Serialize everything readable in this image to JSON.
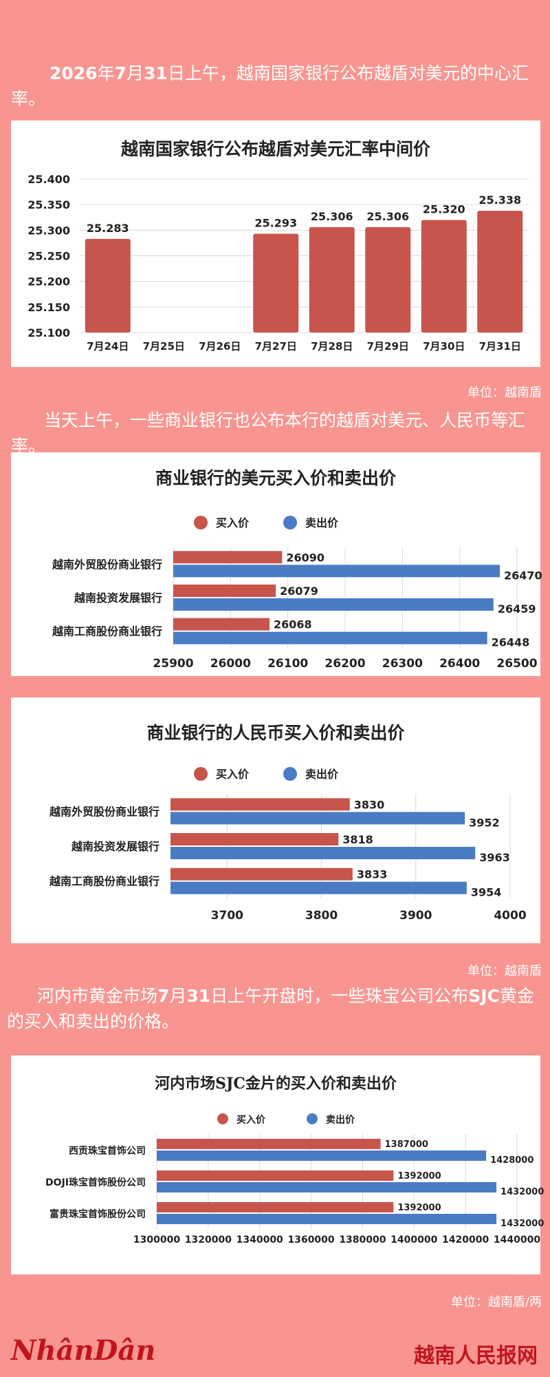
{
  "intro": {
    "date_bold": "2026",
    "t1": "年",
    "m": "7",
    "t2": "月",
    "d": "31",
    "t3": "日上午，越南国家银行公布越盾对美元的中心汇率。"
  },
  "para2": "当天上午，一些商业银行也公布本行的越盾对美元、人民币等汇率。",
  "para3": {
    "pre": "河内市黄金市场",
    "b1": "7",
    "mid1": "月",
    "b2": "31",
    "mid2": "日上午开盘时，一些珠宝公司公布",
    "b3": "SJC",
    "post": "黄金的买入和卖出的价格。"
  },
  "units": {
    "u1": "单位：越南盾",
    "u2": "单位：越南盾",
    "u3": "单位：越南盾/两"
  },
  "footer": {
    "logo": "NhânDân",
    "brand": "越南人民报网"
  },
  "colors": {
    "buy": "#c8554c",
    "sell": "#4a7cc4",
    "bg": "#f89590"
  },
  "chart_data": [
    {
      "type": "bar",
      "title": "越南国家银行公布越盾对美元汇率中间价",
      "categories": [
        "7月24日",
        "7月25日",
        "7月26日",
        "7月27日",
        "7月28日",
        "7月29日",
        "7月30日",
        "7月31日"
      ],
      "values": [
        25.283,
        null,
        null,
        25.293,
        25.306,
        25.306,
        25.32,
        25.338
      ],
      "value_labels": [
        "25.283",
        "",
        "",
        "25.293",
        "25.306",
        "25.306",
        "25.320",
        "25.338"
      ],
      "ylim": [
        25.1,
        25.4
      ],
      "yticks": [
        "25.100",
        "25.150",
        "25.200",
        "25.250",
        "25.300",
        "25.350",
        "25.400"
      ],
      "grid": true
    },
    {
      "type": "bar",
      "orientation": "horizontal",
      "title": "商业银行的美元买入价和卖出价",
      "legend": [
        "买入价",
        "卖出价"
      ],
      "categories": [
        "越南外贸股份商业银行",
        "越南投资发展银行",
        "越南工商股份商业银行"
      ],
      "series": [
        {
          "name": "买入价",
          "values": [
            26090,
            26079,
            26068
          ]
        },
        {
          "name": "卖出价",
          "values": [
            26470,
            26459,
            26448
          ]
        }
      ],
      "xlim": [
        25900,
        26500
      ],
      "xticks": [
        "25900",
        "26000",
        "26100",
        "26200",
        "26300",
        "26400",
        "26500"
      ]
    },
    {
      "type": "bar",
      "orientation": "horizontal",
      "title": "商业银行的人民币买入价和卖出价",
      "legend": [
        "买入价",
        "卖出价"
      ],
      "categories": [
        "越南外贸股份商业银行",
        "越南投资发展银行",
        "越南工商股份商业银行"
      ],
      "series": [
        {
          "name": "买入价",
          "values": [
            3830,
            3818,
            3833
          ]
        },
        {
          "name": "卖出价",
          "values": [
            3952,
            3963,
            3954
          ]
        }
      ],
      "xlim": [
        3640,
        4000
      ],
      "xticks": [
        "3700",
        "3800",
        "3900",
        "4000"
      ]
    },
    {
      "type": "bar",
      "orientation": "horizontal",
      "title": "河内市场SJC金片的买入价和卖出价",
      "legend": [
        "买入价",
        "卖出价"
      ],
      "categories": [
        "西贡珠宝首饰公司",
        "DOJI珠宝首饰股份公司",
        "富贵珠宝首饰股份公司"
      ],
      "series": [
        {
          "name": "买入价",
          "values": [
            1387000,
            1392000,
            1392000
          ]
        },
        {
          "name": "卖出价",
          "values": [
            1428000,
            1432000,
            1432000
          ]
        }
      ],
      "xlim": [
        1300000,
        1440000
      ],
      "xticks": [
        "1300000",
        "1320000",
        "1340000",
        "1360000",
        "1380000",
        "1400000",
        "1420000",
        "1440000"
      ]
    }
  ]
}
